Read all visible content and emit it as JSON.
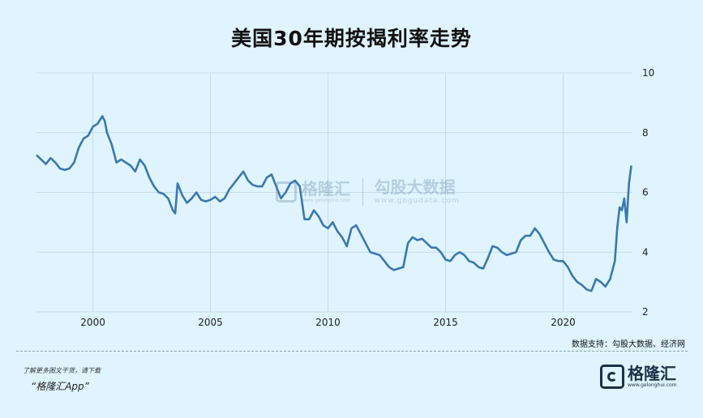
{
  "chart_data": {
    "type": "line",
    "title": "美国30年期按揭利率走势",
    "xlabel": "",
    "ylabel": "",
    "xlim": [
      1997.6,
      2022.95
    ],
    "ylim": [
      2,
      10
    ],
    "x_ticks": [
      2000,
      2005,
      2010,
      2015,
      2020
    ],
    "y_ticks": [
      2,
      4,
      6,
      8,
      10
    ],
    "grid": true,
    "line_color": "#3a78b0",
    "series": [
      {
        "x": [
          1997.6,
          1997.8,
          1998.0,
          1998.2,
          1998.4,
          1998.6,
          1998.8,
          1999.0,
          1999.2,
          1999.4,
          1999.6,
          1999.8,
          2000.0,
          2000.2,
          2000.4,
          2000.5,
          2000.6,
          2000.8,
          2001.0,
          2001.2,
          2001.4,
          2001.6,
          2001.8,
          2002.0,
          2002.2,
          2002.4,
          2002.6,
          2002.8,
          2003.0,
          2003.2,
          2003.4,
          2003.5,
          2003.6,
          2003.8,
          2004.0,
          2004.2,
          2004.4,
          2004.6,
          2004.8,
          2005.0,
          2005.2,
          2005.4,
          2005.6,
          2005.8,
          2006.0,
          2006.2,
          2006.4,
          2006.6,
          2006.8,
          2007.0,
          2007.2,
          2007.4,
          2007.6,
          2007.8,
          2008.0,
          2008.2,
          2008.4,
          2008.6,
          2008.8,
          2009.0,
          2009.2,
          2009.4,
          2009.6,
          2009.8,
          2010.0,
          2010.2,
          2010.4,
          2010.6,
          2010.8,
          2011.0,
          2011.2,
          2011.4,
          2011.6,
          2011.8,
          2012.0,
          2012.2,
          2012.4,
          2012.6,
          2012.8,
          2013.0,
          2013.2,
          2013.4,
          2013.6,
          2013.8,
          2014.0,
          2014.2,
          2014.4,
          2014.6,
          2014.8,
          2015.0,
          2015.2,
          2015.4,
          2015.6,
          2015.8,
          2016.0,
          2016.2,
          2016.4,
          2016.6,
          2016.8,
          2017.0,
          2017.2,
          2017.4,
          2017.6,
          2017.8,
          2018.0,
          2018.2,
          2018.4,
          2018.6,
          2018.8,
          2019.0,
          2019.2,
          2019.4,
          2019.6,
          2019.8,
          2020.0,
          2020.2,
          2020.4,
          2020.6,
          2020.8,
          2021.0,
          2021.2,
          2021.4,
          2021.6,
          2021.8,
          2022.0,
          2022.2,
          2022.3,
          2022.4,
          2022.5,
          2022.6,
          2022.7,
          2022.8,
          2022.9
        ],
        "y": [
          7.25,
          7.1,
          6.95,
          7.15,
          7.0,
          6.8,
          6.75,
          6.8,
          7.0,
          7.5,
          7.8,
          7.9,
          8.2,
          8.3,
          8.55,
          8.4,
          8.0,
          7.6,
          7.0,
          7.1,
          7.0,
          6.9,
          6.7,
          7.1,
          6.9,
          6.5,
          6.2,
          6.0,
          5.95,
          5.8,
          5.4,
          5.3,
          6.3,
          5.9,
          5.65,
          5.8,
          6.0,
          5.75,
          5.7,
          5.75,
          5.85,
          5.7,
          5.8,
          6.1,
          6.3,
          6.5,
          6.7,
          6.4,
          6.25,
          6.2,
          6.2,
          6.5,
          6.6,
          6.2,
          5.8,
          6.0,
          6.3,
          6.4,
          6.2,
          5.1,
          5.1,
          5.4,
          5.2,
          4.9,
          4.8,
          5.0,
          4.7,
          4.5,
          4.2,
          4.8,
          4.9,
          4.6,
          4.3,
          4.0,
          3.95,
          3.9,
          3.7,
          3.5,
          3.4,
          3.45,
          3.5,
          4.3,
          4.5,
          4.4,
          4.45,
          4.3,
          4.15,
          4.15,
          4.0,
          3.75,
          3.7,
          3.9,
          4.0,
          3.9,
          3.7,
          3.65,
          3.5,
          3.45,
          3.8,
          4.2,
          4.15,
          4.0,
          3.9,
          3.95,
          4.0,
          4.4,
          4.55,
          4.55,
          4.8,
          4.6,
          4.3,
          4.0,
          3.75,
          3.7,
          3.7,
          3.5,
          3.2,
          3.0,
          2.9,
          2.75,
          2.7,
          3.1,
          3.0,
          2.85,
          3.1,
          3.7,
          4.8,
          5.5,
          5.4,
          5.8,
          5.0,
          6.3,
          6.9
        ]
      }
    ]
  },
  "source": "数据支持：勾股大数据、经济网",
  "footer": {
    "note": "了解更多图文干货，请下载",
    "app": "“格隆汇App”"
  },
  "brand": {
    "name": "格隆汇",
    "url": "www.gelonghui.com"
  },
  "watermark": {
    "brand_name": "格隆汇",
    "brand_url": "www.gelonghui.com",
    "partner_name": "勾股大数据",
    "partner_url": "www.gogudata.com"
  }
}
